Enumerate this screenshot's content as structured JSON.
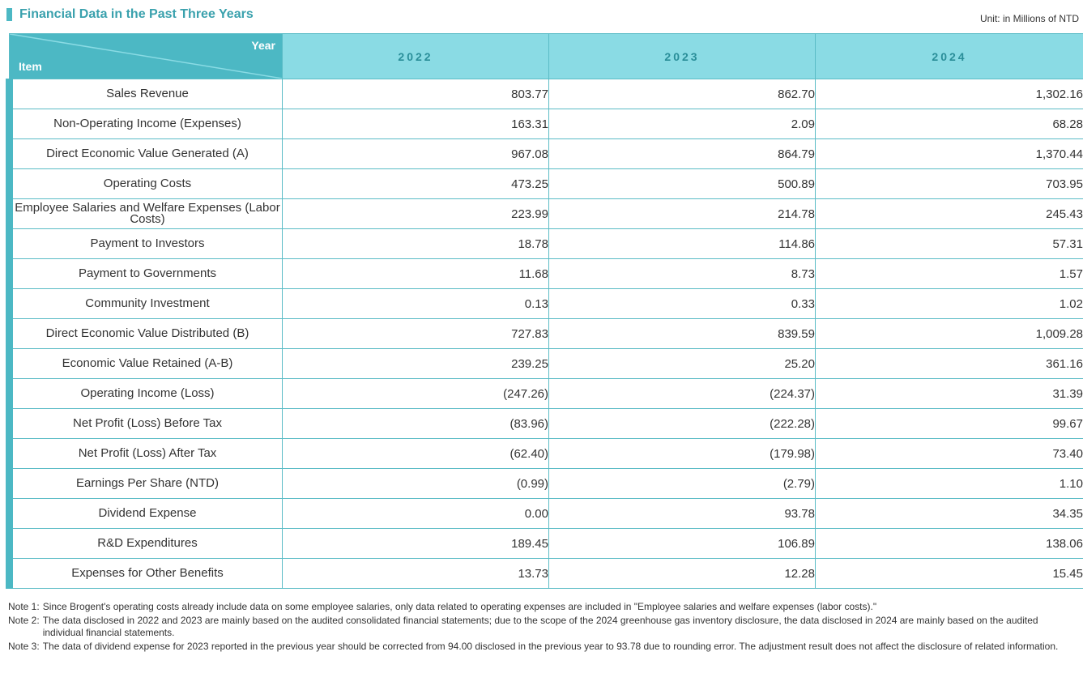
{
  "title": "Financial Data in the Past Three Years",
  "unit": "Unit: in Millions of NTD",
  "header": {
    "year_label": "Year",
    "item_label": "Item",
    "years": [
      "2022",
      "2023",
      "2024"
    ]
  },
  "colors": {
    "accent": "#4cb8c4",
    "header_bg": "#8adbe4",
    "title": "#3aa1ad"
  },
  "rows": [
    {
      "item": "Sales Revenue",
      "values": [
        "803.77",
        "862.70",
        "1,302.16"
      ]
    },
    {
      "item": "Non-Operating Income (Expenses)",
      "values": [
        "163.31",
        "2.09",
        "68.28"
      ]
    },
    {
      "item": "Direct Economic Value Generated (A)",
      "values": [
        "967.08",
        "864.79",
        "1,370.44"
      ]
    },
    {
      "item": "Operating Costs",
      "values": [
        "473.25",
        "500.89",
        "703.95"
      ]
    },
    {
      "item": "Employee Salaries and Welfare Expenses (Labor Costs)",
      "values": [
        "223.99",
        "214.78",
        "245.43"
      ]
    },
    {
      "item": "Payment to Investors",
      "values": [
        "18.78",
        "114.86",
        "57.31"
      ]
    },
    {
      "item": "Payment to Governments",
      "values": [
        "11.68",
        "8.73",
        "1.57"
      ]
    },
    {
      "item": "Community Investment",
      "values": [
        "0.13",
        "0.33",
        "1.02"
      ]
    },
    {
      "item": "Direct Economic Value Distributed (B)",
      "values": [
        "727.83",
        "839.59",
        "1,009.28"
      ]
    },
    {
      "item": "Economic Value Retained (A-B)",
      "values": [
        "239.25",
        "25.20",
        "361.16"
      ]
    },
    {
      "item": "Operating Income (Loss)",
      "values": [
        "(247.26)",
        "(224.37)",
        "31.39"
      ]
    },
    {
      "item": "Net Profit (Loss) Before Tax",
      "values": [
        "(83.96)",
        "(222.28)",
        "99.67"
      ]
    },
    {
      "item": "Net Profit (Loss) After Tax",
      "values": [
        "(62.40)",
        "(179.98)",
        "73.40"
      ]
    },
    {
      "item": "Earnings Per Share (NTD)",
      "values": [
        "(0.99)",
        "(2.79)",
        "1.10"
      ]
    },
    {
      "item": "Dividend Expense",
      "values": [
        "0.00",
        "93.78",
        "34.35"
      ]
    },
    {
      "item": "R&D Expenditures",
      "values": [
        "189.45",
        "106.89",
        "138.06"
      ]
    },
    {
      "item": "Expenses for Other Benefits",
      "values": [
        "13.73",
        "12.28",
        "15.45"
      ]
    }
  ],
  "notes": [
    {
      "label": "Note 1:",
      "text": "Since Brogent's operating costs already include data on some employee salaries, only data related to operating expenses are included in \"Employee salaries and welfare expenses (labor costs).\""
    },
    {
      "label": "Note 2:",
      "text": "The data disclosed in 2022 and 2023 are mainly based on the audited consolidated financial statements; due to the scope of the 2024 greenhouse gas inventory disclosure, the data disclosed in 2024 are mainly based on the audited individual financial statements."
    },
    {
      "label": "Note 3:",
      "text": "The data of dividend expense for 2023 reported in the previous year should be corrected from 94.00 disclosed in the previous year to 93.78 due to rounding error. The adjustment result does not affect the disclosure of related information."
    }
  ]
}
